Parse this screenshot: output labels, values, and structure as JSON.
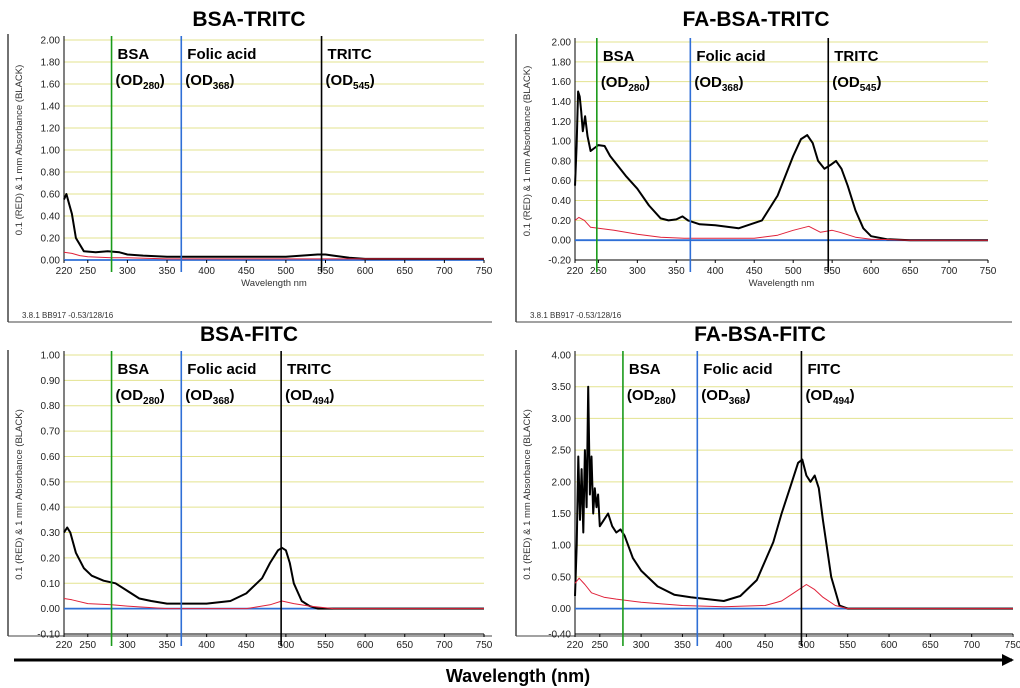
{
  "figure": {
    "xlabel": "Wavelength (nm)",
    "colors": {
      "black_curve": "#000000",
      "red_curve": "#e0223a",
      "bsa_line": "#1a9a1a",
      "folic_line": "#2f6fd6",
      "dye_line": "#000000",
      "grid": "#e3e38f",
      "baseline": "#2f6fd6"
    }
  },
  "chart_data": [
    {
      "type": "line",
      "title": "BSA-TRITC",
      "xlabel": "Wavelength nm",
      "ylabel": "0.1 (RED) & 1 mm Absorbance (BLACK)",
      "footer": "3.8.1 BB917 -0.53/128/16",
      "xlim": [
        220,
        750
      ],
      "ylim": [
        0,
        2.0
      ],
      "xticks": [
        "220",
        "250",
        "300",
        "350",
        "400",
        "450",
        "500",
        "550",
        "600",
        "650",
        "700",
        "750"
      ],
      "yticks": [
        "0.00",
        "0.20",
        "0.40",
        "0.60",
        "0.80",
        "1.00",
        "1.20",
        "1.40",
        "1.60",
        "1.80",
        "2.00"
      ],
      "grid": true,
      "markers": [
        {
          "x": 280,
          "color": "#1a9a1a",
          "name": "BSA",
          "od": "280"
        },
        {
          "x": 368,
          "color": "#2f6fd6",
          "name": "Folic acid",
          "od": "368"
        },
        {
          "x": 545,
          "color": "#000000",
          "name": "TRITC",
          "od": "545"
        }
      ],
      "series": [
        {
          "color": "#000000",
          "x": [
            220,
            223,
            226,
            230,
            235,
            245,
            260,
            275,
            290,
            300,
            320,
            350,
            400,
            450,
            500,
            520,
            540,
            550,
            560,
            580,
            600,
            650,
            700,
            750
          ],
          "y": [
            0.55,
            0.6,
            0.52,
            0.42,
            0.2,
            0.08,
            0.07,
            0.08,
            0.07,
            0.05,
            0.04,
            0.03,
            0.03,
            0.03,
            0.03,
            0.04,
            0.05,
            0.05,
            0.04,
            0.02,
            0.01,
            0.01,
            0.01,
            0.01
          ]
        },
        {
          "color": "#e0223a",
          "x": [
            220,
            230,
            240,
            250,
            280,
            300,
            350,
            400,
            450,
            500,
            550,
            600,
            650,
            700,
            750
          ],
          "y": [
            0.07,
            0.06,
            0.04,
            0.03,
            0.02,
            0.02,
            0.01,
            0.01,
            0.01,
            0.01,
            0.01,
            0.01,
            0.01,
            0.01,
            0.01
          ]
        }
      ]
    },
    {
      "type": "line",
      "title": "FA-BSA-TRITC",
      "xlabel": "Wavelength nm",
      "ylabel": "0.1 (RED) & 1 mm Absorbance (BLACK)",
      "footer": "3.8.1 BB917 -0.53/128/16",
      "xlim": [
        220,
        750
      ],
      "ylim": [
        -0.2,
        2.0
      ],
      "xticks": [
        "220",
        "250",
        "300",
        "350",
        "400",
        "450",
        "500",
        "550",
        "600",
        "650",
        "700",
        "750"
      ],
      "yticks": [
        "-0.20",
        "0.00",
        "0.20",
        "0.40",
        "0.60",
        "0.80",
        "1.00",
        "1.20",
        "1.40",
        "1.60",
        "1.80",
        "2.00"
      ],
      "grid": true,
      "markers": [
        {
          "x": 248,
          "color": "#1a9a1a",
          "name": "BSA",
          "od": "280"
        },
        {
          "x": 368,
          "color": "#2f6fd6",
          "name": "Folic acid",
          "od": "368"
        },
        {
          "x": 545,
          "color": "#000000",
          "name": "TRITC",
          "od": "545"
        }
      ],
      "series": [
        {
          "color": "#000000",
          "x": [
            220,
            222,
            224,
            226,
            228,
            230,
            233,
            236,
            240,
            245,
            250,
            258,
            265,
            275,
            285,
            300,
            315,
            330,
            340,
            350,
            358,
            365,
            380,
            400,
            430,
            460,
            480,
            500,
            510,
            518,
            525,
            532,
            540,
            548,
            555,
            562,
            570,
            580,
            590,
            600,
            620,
            650,
            700,
            750
          ],
          "y": [
            0.55,
            0.95,
            1.5,
            1.45,
            1.3,
            1.1,
            1.25,
            1.05,
            0.9,
            0.93,
            0.96,
            0.95,
            0.85,
            0.75,
            0.65,
            0.52,
            0.35,
            0.22,
            0.2,
            0.21,
            0.24,
            0.2,
            0.16,
            0.15,
            0.12,
            0.2,
            0.45,
            0.85,
            1.02,
            1.06,
            0.98,
            0.8,
            0.72,
            0.76,
            0.8,
            0.72,
            0.55,
            0.3,
            0.12,
            0.04,
            0.01,
            0.0,
            0.0,
            0.0
          ]
        },
        {
          "color": "#e0223a",
          "x": [
            220,
            225,
            232,
            240,
            250,
            270,
            300,
            330,
            360,
            400,
            450,
            480,
            500,
            520,
            535,
            550,
            560,
            580,
            600,
            650,
            700,
            750
          ],
          "y": [
            0.2,
            0.23,
            0.2,
            0.13,
            0.12,
            0.1,
            0.06,
            0.03,
            0.02,
            0.02,
            0.02,
            0.05,
            0.1,
            0.14,
            0.08,
            0.1,
            0.08,
            0.03,
            0.01,
            0.0,
            0.0,
            0.0
          ]
        }
      ]
    },
    {
      "type": "line",
      "title": "BSA-FITC",
      "xlabel": "",
      "ylabel": "0.1 (RED) & 1 mm Absorbance (BLACK)",
      "footer": "",
      "xlim": [
        220,
        750
      ],
      "ylim": [
        -0.1,
        1.0
      ],
      "xticks": [
        "220",
        "250",
        "300",
        "350",
        "400",
        "450",
        "500",
        "550",
        "600",
        "650",
        "700",
        "750"
      ],
      "yticks": [
        "-0.10",
        "0.00",
        "0.10",
        "0.20",
        "0.30",
        "0.40",
        "0.50",
        "0.60",
        "0.70",
        "0.80",
        "0.90",
        "1.00"
      ],
      "grid": true,
      "markers": [
        {
          "x": 280,
          "color": "#1a9a1a",
          "name": "BSA",
          "od": "280"
        },
        {
          "x": 368,
          "color": "#2f6fd6",
          "name": "Folic acid",
          "od": "368"
        },
        {
          "x": 494,
          "color": "#000000",
          "name": "TRITC",
          "od": "494"
        }
      ],
      "series": [
        {
          "color": "#000000",
          "x": [
            220,
            224,
            228,
            235,
            245,
            255,
            270,
            285,
            300,
            315,
            330,
            350,
            380,
            400,
            430,
            450,
            470,
            480,
            490,
            495,
            500,
            505,
            510,
            520,
            530,
            540,
            560,
            600,
            650,
            700,
            750
          ],
          "y": [
            0.3,
            0.32,
            0.3,
            0.22,
            0.16,
            0.13,
            0.11,
            0.1,
            0.07,
            0.04,
            0.03,
            0.02,
            0.02,
            0.02,
            0.03,
            0.06,
            0.12,
            0.18,
            0.23,
            0.24,
            0.23,
            0.18,
            0.1,
            0.03,
            0.01,
            0.0,
            0.0,
            0.0,
            0.0,
            0.0,
            0.0
          ]
        },
        {
          "color": "#e0223a",
          "x": [
            220,
            230,
            250,
            280,
            300,
            350,
            400,
            450,
            480,
            495,
            510,
            530,
            560,
            600,
            750
          ],
          "y": [
            0.04,
            0.035,
            0.02,
            0.015,
            0.01,
            0.0,
            0.0,
            0.0,
            0.015,
            0.03,
            0.02,
            0.01,
            0.0,
            0.0,
            0.0
          ]
        }
      ]
    },
    {
      "type": "line",
      "title": "FA-BSA-FITC",
      "xlabel": "",
      "ylabel": "0.1 (RED) & 1 mm Absorbance (BLACK)",
      "footer": "",
      "xlim": [
        220,
        750
      ],
      "ylim": [
        -0.4,
        4.0
      ],
      "xticks": [
        "220",
        "250",
        "300",
        "350",
        "400",
        "450",
        "500",
        "550",
        "600",
        "650",
        "700",
        "750"
      ],
      "yticks": [
        "-0.40",
        "0.00",
        "0.50",
        "1.00",
        "1.50",
        "2.00",
        "2.50",
        "3.00",
        "3.50",
        "4.00"
      ],
      "grid": true,
      "markers": [
        {
          "x": 278,
          "color": "#1a9a1a",
          "name": "BSA",
          "od": "280"
        },
        {
          "x": 368,
          "color": "#2f6fd6",
          "name": "Folic acid",
          "od": "368"
        },
        {
          "x": 494,
          "color": "#000000",
          "name": "FITC",
          "od": "494"
        }
      ],
      "series": [
        {
          "color": "#000000",
          "x": [
            220,
            222,
            224,
            226,
            228,
            230,
            232,
            234,
            236,
            238,
            240,
            242,
            244,
            246,
            248,
            250,
            255,
            260,
            265,
            270,
            275,
            280,
            290,
            300,
            320,
            340,
            360,
            380,
            400,
            420,
            440,
            460,
            470,
            480,
            490,
            495,
            500,
            505,
            510,
            515,
            520,
            530,
            540,
            550,
            600,
            650,
            700,
            750
          ],
          "y": [
            0.2,
            1.0,
            2.4,
            1.4,
            2.2,
            1.2,
            2.5,
            1.6,
            3.5,
            1.8,
            2.4,
            1.5,
            1.9,
            1.6,
            1.8,
            1.3,
            1.4,
            1.5,
            1.3,
            1.2,
            1.25,
            1.15,
            0.8,
            0.6,
            0.35,
            0.22,
            0.18,
            0.15,
            0.12,
            0.2,
            0.45,
            1.05,
            1.5,
            1.9,
            2.3,
            2.35,
            2.1,
            2.0,
            2.1,
            1.9,
            1.4,
            0.5,
            0.05,
            0.0,
            0.0,
            0.0,
            0.0,
            0.0
          ]
        },
        {
          "color": "#e0223a",
          "x": [
            220,
            225,
            232,
            240,
            255,
            270,
            300,
            350,
            400,
            450,
            470,
            485,
            500,
            510,
            520,
            535,
            550,
            600,
            750
          ],
          "y": [
            0.4,
            0.48,
            0.38,
            0.25,
            0.18,
            0.15,
            0.1,
            0.05,
            0.03,
            0.05,
            0.12,
            0.25,
            0.38,
            0.3,
            0.18,
            0.05,
            0.0,
            0.0,
            0.0
          ]
        }
      ]
    }
  ]
}
